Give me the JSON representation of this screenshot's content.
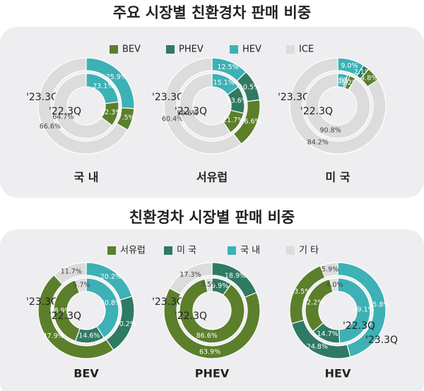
{
  "chart_data": [
    {
      "type": "donut",
      "title": "주요 시장별 친환경차 판매 비중",
      "series": [
        {
          "name": "BEV",
          "color": "#5b7f2b"
        },
        {
          "name": "PHEV",
          "color": "#2f7a63"
        },
        {
          "name": "HEV",
          "color": "#3db1b5"
        },
        {
          "name": "ICE",
          "color": "#dcdcdc"
        }
      ],
      "panels": [
        {
          "name": "국 내",
          "rings": [
            {
              "label": "'23.3Q",
              "values": [
                7.5,
                null,
                25.9,
                66.6
              ],
              "value_labels": [
                "7.5%",
                null,
                "25.9%",
                "66.6%"
              ]
            },
            {
              "label": "'22.3Q",
              "values": [
                12.3,
                null,
                23.1,
                64.7
              ],
              "value_labels": [
                "12.3%",
                null,
                "23.1%",
                "64.7%"
              ]
            }
          ]
        },
        {
          "name": "서유럽",
          "rings": [
            {
              "label": "'23.3Q",
              "values": [
                16.6,
                10.5,
                12.5,
                60.4
              ],
              "value_labels": [
                "16.6%",
                "10.5%",
                "12.5%",
                "60.4%"
              ]
            },
            {
              "label": "'22.3Q",
              "values": [
                11.7,
                13.6,
                15.1,
                59.6
              ],
              "value_labels": [
                "11.7%",
                "13.6%",
                "15.1%",
                "59.6%"
              ]
            }
          ]
        },
        {
          "name": "미 국",
          "rings": [
            {
              "label": "'23.3Q",
              "values": [
                4.8,
                2.1,
                9.0,
                84.2
              ],
              "value_labels": [
                "4.8%",
                "2.1%",
                "9.0%",
                "84.2%"
              ]
            },
            {
              "label": "'22.3Q",
              "values": [
                3.2,
                1.1,
                4.9,
                90.8
              ],
              "value_labels": [
                "3.2%",
                "1.1%",
                "4.9%",
                "90.8%"
              ]
            }
          ]
        }
      ]
    },
    {
      "type": "donut",
      "title": "친환경차 시장별 판매 비중",
      "series": [
        {
          "name": "서유럽",
          "color": "#5b7f2b"
        },
        {
          "name": "미 국",
          "color": "#2f7a63"
        },
        {
          "name": "국 내",
          "color": "#3db1b5"
        },
        {
          "name": "기 타",
          "color": "#dcdcdc"
        }
      ],
      "panels": [
        {
          "name": "BEV",
          "rings": [
            {
              "label": "'23.3Q",
              "values": [
                47.9,
                20.2,
                20.2,
                11.7
              ],
              "value_labels": [
                "47.9%",
                "20.2%",
                "20.2%",
                "11.7%"
              ]
            },
            {
              "label": "'22.3Q",
              "values": [
                38.9,
                14.6,
                40.8,
                5.7
              ],
              "value_labels": [
                "38.9%",
                "14.6%",
                "40.8%",
                "5.7%"
              ]
            }
          ]
        },
        {
          "name": "PHEV",
          "rings": [
            {
              "label": "'23.3Q",
              "values": [
                63.9,
                18.9,
                null,
                17.3
              ],
              "value_labels": [
                "63.9%",
                "18.9%",
                null,
                "17.3%"
              ]
            },
            {
              "label": "'22.3Q",
              "values": [
                86.6,
                9.9,
                null,
                3.5
              ],
              "value_labels": [
                "86.6%",
                "9.9%",
                null,
                "3.5%"
              ]
            }
          ]
        },
        {
          "name": "HEV",
          "rings": [
            {
              "label": "'23.3Q",
              "values": [
                23.5,
                24.8,
                45.8,
                5.9
              ],
              "value_labels": [
                "23.5%",
                "24.8%",
                "45.8%",
                "5.9%"
              ]
            },
            {
              "label": "'22.3Q",
              "values": [
                32.2,
                14.7,
                49.1,
                4.0
              ],
              "value_labels": [
                "32.2%",
                "14.7%",
                "49.1%",
                "4.0%"
              ]
            }
          ]
        }
      ]
    }
  ]
}
